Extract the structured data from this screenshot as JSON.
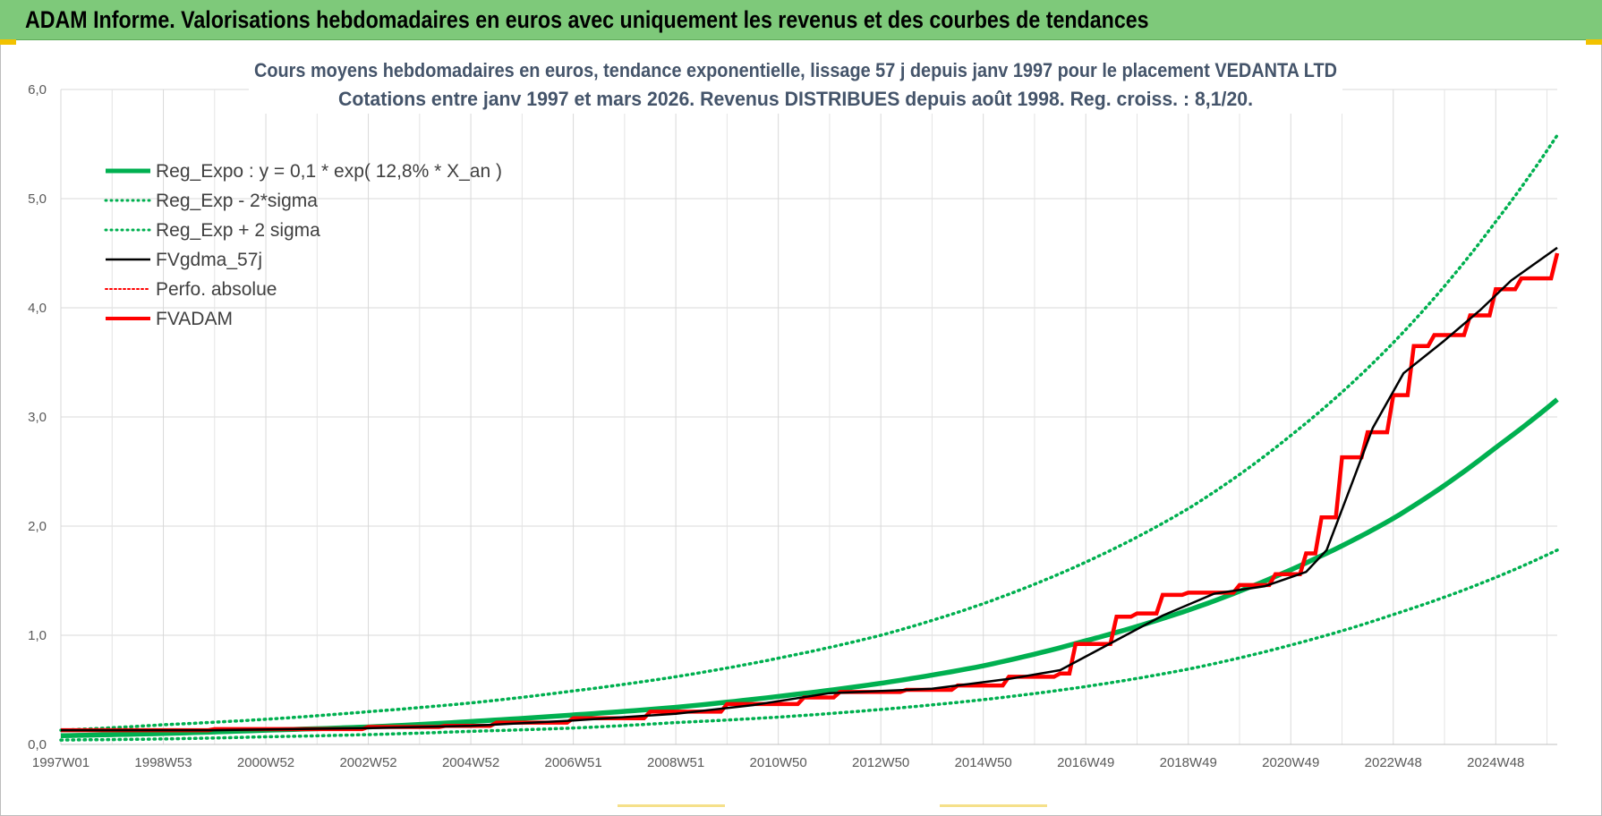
{
  "header": {
    "title": "ADAM Informe. Valorisations hebdomadaires en euros avec uniquement les revenus et des courbes de tendances"
  },
  "colors": {
    "banner": "#7ec97a",
    "green": "#00b050",
    "black": "#000000",
    "red": "#ff0000",
    "grid": "#d9d9d9"
  },
  "chart_data": {
    "type": "line",
    "title_line1": "Cours moyens hebdomadaires en euros, tendance exponentielle, lissage 57 j depuis janv 1997  pour le placement VEDANTA LTD",
    "title_line2": "Cotations entre janv 1997 et mars 2026. Revenus DISTRIBUES depuis août 1998. Reg. croiss. : 8,1/20.",
    "xlabel": "",
    "ylabel": "",
    "x_range": [
      1997.0,
      2026.2
    ],
    "ylim": [
      0,
      6
    ],
    "y_ticks": [
      0,
      1,
      2,
      3,
      4,
      5,
      6
    ],
    "y_tick_labels": [
      "0,0",
      "1,0",
      "2,0",
      "3,0",
      "4,0",
      "5,0",
      "6,0"
    ],
    "x_tick_labels": [
      "1997W01",
      "1998W53",
      "2000W52",
      "2002W52",
      "2004W52",
      "2006W51",
      "2008W51",
      "2010W50",
      "2012W50",
      "2014W50",
      "2016W49",
      "2018W49",
      "2020W49",
      "2022W48",
      "2024W48"
    ],
    "x_tick_years": [
      1997.0,
      1999.0,
      2001.0,
      2003.0,
      2005.0,
      2007.0,
      2009.0,
      2011.0,
      2013.0,
      2015.0,
      2017.0,
      2019.0,
      2021.0,
      2023.0,
      2025.0
    ],
    "legend": [
      {
        "name": "Reg_Expo : y = 0,1 * exp( 12,8% *  X_an )",
        "color": "#00b050",
        "style": "solid",
        "width": 5
      },
      {
        "name": "Reg_Exp - 2*sigma",
        "color": "#00b050",
        "style": "dotted",
        "width": 3
      },
      {
        "name": "Reg_Exp + 2 sigma",
        "color": "#00b050",
        "style": "dotted",
        "width": 3
      },
      {
        "name": "FVgdma_57j",
        "color": "#000000",
        "style": "solid",
        "width": 2.5
      },
      {
        "name": "Perfo. absolue",
        "color": "#ff0000",
        "style": "dotted",
        "width": 2
      },
      {
        "name": "FVADAM",
        "color": "#ff0000",
        "style": "solid",
        "width": 4
      }
    ],
    "series": [
      {
        "name": "Reg_Expo",
        "x": [
          1997.0,
          1999.0,
          2001.0,
          2003.0,
          2005.0,
          2007.0,
          2009.0,
          2011.0,
          2013.0,
          2015.0,
          2017.0,
          2019.0,
          2021.0,
          2023.0,
          2025.0,
          2026.2
        ],
        "values": [
          0.08,
          0.1,
          0.13,
          0.16,
          0.21,
          0.27,
          0.34,
          0.44,
          0.56,
          0.72,
          0.95,
          1.23,
          1.6,
          2.07,
          2.72,
          3.16
        ]
      },
      {
        "name": "Reg_Exp - 2*sigma",
        "x": [
          1997.0,
          1999.0,
          2001.0,
          2003.0,
          2005.0,
          2007.0,
          2009.0,
          2011.0,
          2013.0,
          2015.0,
          2017.0,
          2019.0,
          2021.0,
          2023.0,
          2025.0,
          2026.2
        ],
        "values": [
          0.04,
          0.05,
          0.07,
          0.09,
          0.12,
          0.15,
          0.2,
          0.25,
          0.32,
          0.41,
          0.53,
          0.69,
          0.91,
          1.19,
          1.53,
          1.78
        ]
      },
      {
        "name": "Reg_Exp + 2 sigma",
        "x": [
          1997.0,
          1999.0,
          2001.0,
          2003.0,
          2005.0,
          2007.0,
          2009.0,
          2011.0,
          2013.0,
          2015.0,
          2017.0,
          2019.0,
          2021.0,
          2023.0,
          2025.0,
          2026.2
        ],
        "values": [
          0.13,
          0.18,
          0.23,
          0.3,
          0.38,
          0.49,
          0.62,
          0.79,
          1.0,
          1.29,
          1.67,
          2.16,
          2.83,
          3.68,
          4.79,
          5.58
        ]
      },
      {
        "name": "FVgdma_57j",
        "x": [
          1997.0,
          2000.0,
          2003.0,
          2005.0,
          2007.0,
          2009.0,
          2010.5,
          2012.0,
          2014.0,
          2015.5,
          2016.5,
          2017.5,
          2018.5,
          2019.5,
          2020.5,
          2021.3,
          2021.7,
          2022.2,
          2022.6,
          2023.2,
          2024.0,
          2024.7,
          2025.3,
          2026.2
        ],
        "values": [
          0.13,
          0.13,
          0.15,
          0.17,
          0.22,
          0.28,
          0.36,
          0.47,
          0.51,
          0.6,
          0.68,
          0.93,
          1.18,
          1.38,
          1.45,
          1.58,
          1.78,
          2.4,
          2.9,
          3.4,
          3.7,
          3.98,
          4.25,
          4.55
        ]
      },
      {
        "name": "FVADAM",
        "x": [
          1997.0,
          1998.6,
          2000.0,
          2001.5,
          2003.0,
          2004.5,
          2005.5,
          2007.0,
          2008.5,
          2010.0,
          2011.5,
          2012.2,
          2013.5,
          2014.5,
          2015.5,
          2016.5,
          2016.8,
          2017.6,
          2018.0,
          2018.5,
          2019.0,
          2020.0,
          2020.7,
          2021.3,
          2021.6,
          2022.0,
          2022.5,
          2023.0,
          2023.4,
          2023.8,
          2024.5,
          2025.0,
          2025.5,
          2026.2
        ],
        "values": [
          0.13,
          0.13,
          0.14,
          0.14,
          0.16,
          0.17,
          0.2,
          0.24,
          0.3,
          0.37,
          0.43,
          0.48,
          0.5,
          0.54,
          0.62,
          0.65,
          0.92,
          1.17,
          1.2,
          1.37,
          1.39,
          1.46,
          1.56,
          1.75,
          2.08,
          2.63,
          2.86,
          3.2,
          3.65,
          3.75,
          3.93,
          4.17,
          4.27,
          4.5
        ]
      }
    ]
  }
}
